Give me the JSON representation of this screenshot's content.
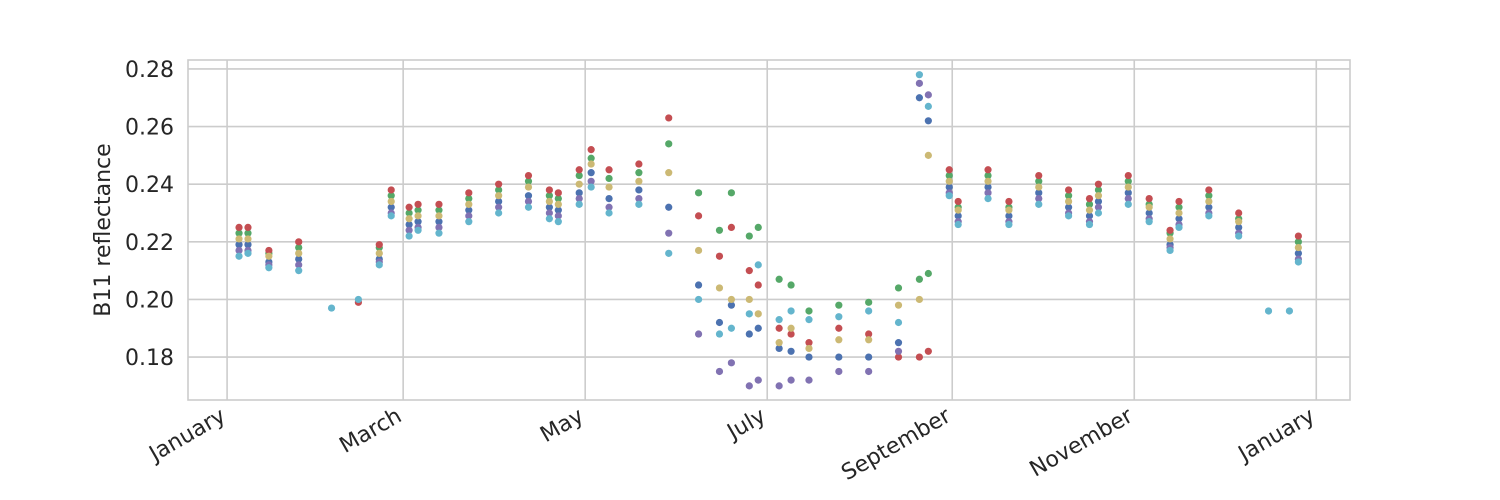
{
  "chart_data": {
    "type": "scatter",
    "ylabel": "B11 reflectance",
    "grid": true,
    "xlim": [
      -13.1,
      376.3
    ],
    "ylim": [
      0.1651,
      0.2831
    ],
    "xticks": [
      {
        "value": 0,
        "label": "January"
      },
      {
        "value": 59,
        "label": "March"
      },
      {
        "value": 120,
        "label": "May"
      },
      {
        "value": 181,
        "label": "July"
      },
      {
        "value": 243,
        "label": "September"
      },
      {
        "value": 304,
        "label": "November"
      },
      {
        "value": 365,
        "label": "January"
      }
    ],
    "yticks": [
      0.18,
      {
        "value": 0.2,
        "label": "0.20"
      },
      0.22,
      0.24,
      0.26,
      0.28
    ],
    "x": [
      4,
      7,
      14,
      24,
      35,
      44,
      51,
      55,
      61,
      64,
      71,
      81,
      91,
      101,
      108,
      111,
      118,
      122,
      128,
      138,
      148,
      158,
      165,
      169,
      175,
      178,
      185,
      189,
      195,
      205,
      215,
      225,
      232,
      235,
      242,
      245,
      255,
      262,
      272,
      282,
      289,
      292,
      302,
      309,
      316,
      319,
      329,
      339,
      349,
      356,
      359
    ],
    "series": [
      {
        "color": "#4c72b0",
        "values": [
          0.219,
          0.219,
          0.213,
          0.214,
          null,
          null,
          0.214,
          0.232,
          0.226,
          0.227,
          0.227,
          0.231,
          0.234,
          0.236,
          0.232,
          0.231,
          0.237,
          0.244,
          0.235,
          0.238,
          0.232,
          0.205,
          0.192,
          0.198,
          0.188,
          0.19,
          0.183,
          0.182,
          0.18,
          0.18,
          0.18,
          0.185,
          0.27,
          0.262,
          0.239,
          0.229,
          0.239,
          0.229,
          0.237,
          0.232,
          0.229,
          0.234,
          0.237,
          0.23,
          0.219,
          0.228,
          0.232,
          0.225,
          null,
          null,
          0.216
        ]
      },
      {
        "color": "#55a868",
        "values": [
          0.223,
          0.223,
          0.216,
          0.218,
          null,
          null,
          0.218,
          0.236,
          0.23,
          0.231,
          0.231,
          0.235,
          0.238,
          0.241,
          0.236,
          0.235,
          0.243,
          0.249,
          0.242,
          0.244,
          0.254,
          0.237,
          0.224,
          0.237,
          0.222,
          0.225,
          0.207,
          0.205,
          0.196,
          0.198,
          0.199,
          0.204,
          0.207,
          0.209,
          0.243,
          0.232,
          0.243,
          0.232,
          0.241,
          0.236,
          0.233,
          0.238,
          0.241,
          0.233,
          0.223,
          0.232,
          0.236,
          0.228,
          null,
          null,
          0.22
        ]
      },
      {
        "color": "#c44e52",
        "values": [
          0.225,
          0.225,
          0.217,
          0.22,
          null,
          0.199,
          0.219,
          0.238,
          0.232,
          0.233,
          0.233,
          0.237,
          0.24,
          0.243,
          0.238,
          0.237,
          0.245,
          0.252,
          0.245,
          0.247,
          0.263,
          0.229,
          0.215,
          0.225,
          0.21,
          0.205,
          0.19,
          0.188,
          0.185,
          0.19,
          0.188,
          0.18,
          0.18,
          0.182,
          0.245,
          0.234,
          0.245,
          0.234,
          0.243,
          0.238,
          0.235,
          0.24,
          0.243,
          0.235,
          0.224,
          0.234,
          0.238,
          0.23,
          null,
          null,
          0.222
        ]
      },
      {
        "color": "#8172b2",
        "values": [
          0.217,
          0.217,
          0.212,
          0.212,
          null,
          null,
          0.213,
          0.23,
          0.224,
          0.225,
          0.225,
          0.229,
          0.232,
          0.234,
          0.23,
          0.229,
          0.235,
          0.241,
          0.232,
          0.235,
          0.223,
          0.188,
          0.175,
          0.178,
          0.17,
          0.172,
          0.17,
          0.172,
          0.172,
          0.175,
          0.175,
          0.182,
          0.275,
          0.271,
          0.237,
          0.227,
          0.237,
          0.227,
          0.235,
          0.23,
          0.227,
          0.232,
          0.235,
          0.228,
          0.218,
          0.226,
          0.23,
          0.223,
          null,
          null,
          0.214
        ]
      },
      {
        "color": "#ccb974",
        "values": [
          0.221,
          0.221,
          0.215,
          0.216,
          null,
          null,
          0.216,
          0.234,
          0.228,
          0.229,
          0.229,
          0.233,
          0.236,
          0.239,
          0.234,
          0.233,
          0.24,
          0.247,
          0.239,
          0.241,
          0.244,
          0.217,
          0.204,
          0.2,
          0.2,
          0.195,
          0.185,
          0.19,
          0.183,
          0.186,
          0.186,
          0.198,
          0.2,
          0.25,
          0.241,
          0.231,
          0.241,
          0.231,
          0.239,
          0.234,
          0.231,
          0.236,
          0.239,
          0.232,
          0.221,
          0.23,
          0.234,
          0.227,
          null,
          null,
          0.218
        ]
      },
      {
        "color": "#64b5cd",
        "values": [
          0.215,
          0.216,
          0.211,
          0.21,
          0.197,
          0.2,
          0.212,
          0.229,
          0.222,
          0.224,
          0.223,
          0.227,
          0.23,
          0.232,
          0.228,
          0.227,
          0.233,
          0.239,
          0.23,
          0.233,
          0.216,
          0.2,
          0.188,
          0.19,
          0.195,
          0.212,
          0.193,
          0.196,
          0.193,
          0.194,
          0.196,
          0.192,
          0.278,
          0.267,
          0.236,
          0.226,
          0.235,
          0.226,
          0.233,
          0.229,
          0.226,
          0.23,
          0.233,
          0.227,
          0.217,
          0.225,
          0.229,
          0.222,
          0.196,
          0.196,
          0.213
        ]
      }
    ]
  }
}
